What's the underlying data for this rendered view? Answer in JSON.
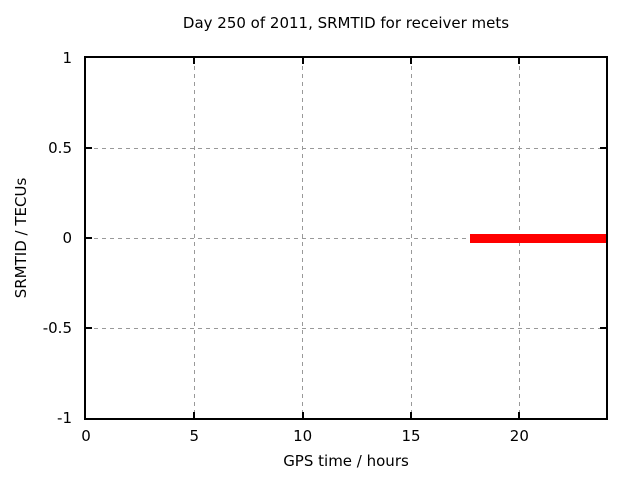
{
  "chart_data": {
    "type": "line",
    "title": "Day 250 of 2011, SRMTID for receiver mets",
    "xlabel": "GPS time / hours",
    "ylabel": "SRMTID / TECUs",
    "xlim": [
      0,
      24
    ],
    "ylim": [
      -1,
      1
    ],
    "xticks": [
      {
        "value": 0,
        "label": "0"
      },
      {
        "value": 5,
        "label": "5"
      },
      {
        "value": 10,
        "label": "10"
      },
      {
        "value": 15,
        "label": "15"
      },
      {
        "value": 20,
        "label": "20"
      }
    ],
    "yticks": [
      {
        "value": -1,
        "label": "-1"
      },
      {
        "value": -0.5,
        "label": "-0.5"
      },
      {
        "value": 0,
        "label": "0"
      },
      {
        "value": 0.5,
        "label": "0.5"
      },
      {
        "value": 1,
        "label": "1"
      }
    ],
    "grid": true,
    "legend": "none",
    "series": [
      {
        "color": "#ff0000",
        "linewidth": 9,
        "points": [
          [
            17.7,
            0
          ],
          [
            24,
            0
          ]
        ]
      }
    ],
    "colors": {
      "background": "#ffffff",
      "border": "#000000",
      "grid": "#999999",
      "text": "#000000"
    }
  }
}
